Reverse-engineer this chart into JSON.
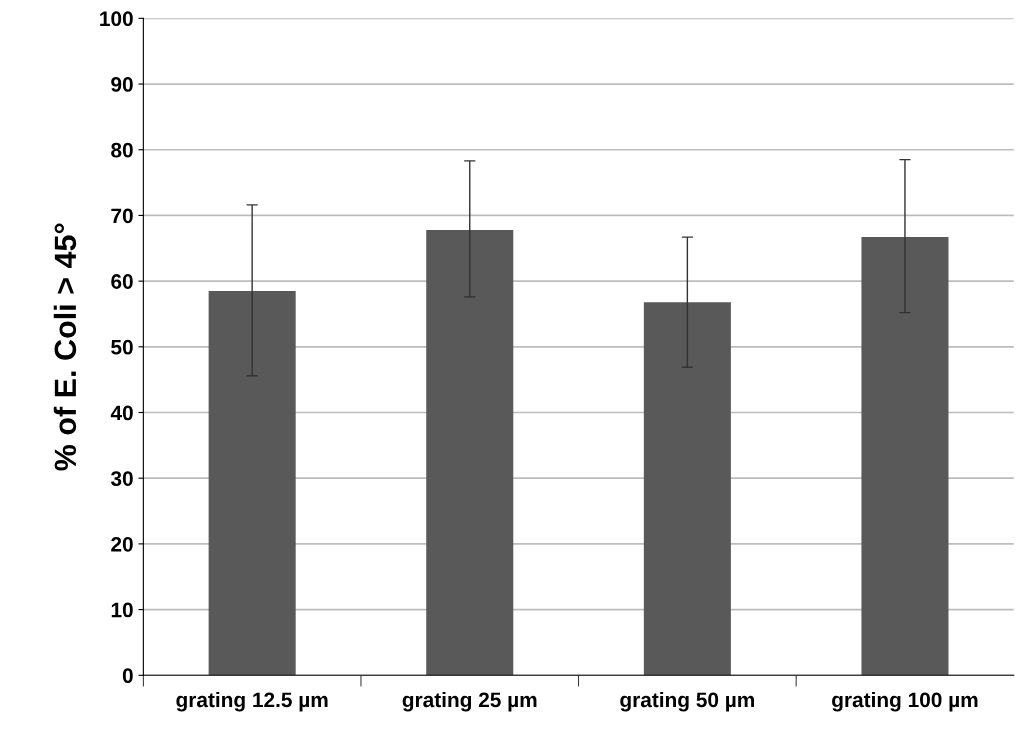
{
  "chart_data": {
    "type": "bar",
    "ylabel": "% of E. Coli > 45°",
    "categories": [
      "grating 12.5 µm",
      "grating 25 µm",
      "grating 50 µm",
      "grating 100 µm"
    ],
    "values": [
      58.5,
      67.8,
      56.8,
      66.7
    ],
    "errors": [
      [
        45.6,
        71.6
      ],
      [
        57.6,
        78.3
      ],
      [
        46.9,
        66.7
      ],
      [
        55.2,
        78.5
      ]
    ],
    "color": "#595959",
    "ylim": [
      0,
      100
    ],
    "yticks": [
      0,
      10,
      20,
      30,
      40,
      50,
      60,
      70,
      80,
      90,
      100
    ],
    "grid": "y",
    "legend": false
  }
}
